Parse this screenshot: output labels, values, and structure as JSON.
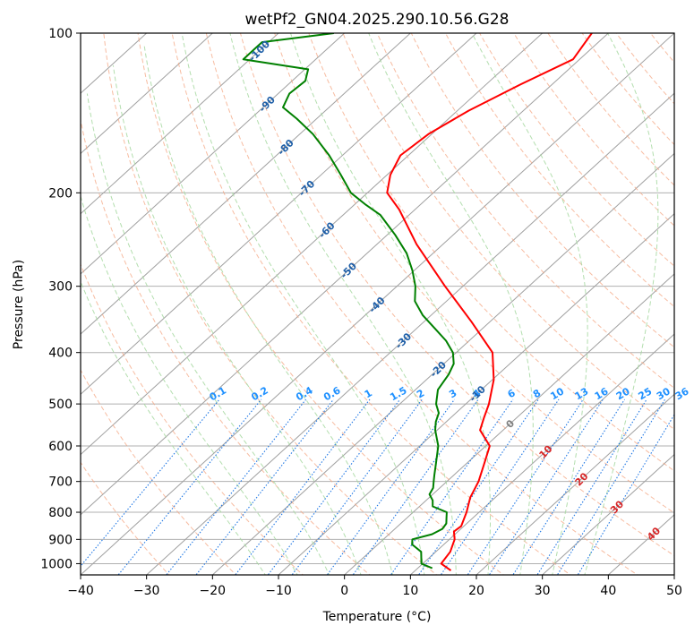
{
  "chart_data": {
    "type": "line",
    "subtype": "skew-t log-p diagram",
    "title": "wetPf2_GN04.2025.290.10.56.G28",
    "xlabel": "Temperature (°C)",
    "ylabel": "Pressure (hPa)",
    "xlim": [
      -40,
      50
    ],
    "ylim": [
      1050,
      100
    ],
    "x_ticks": [
      -40,
      -30,
      -20,
      -10,
      0,
      10,
      20,
      30,
      40,
      50
    ],
    "x_tick_labels": [
      "−40",
      "−30",
      "−20",
      "−10",
      "0",
      "10",
      "20",
      "30",
      "40",
      "50"
    ],
    "y_ticks": [
      1000,
      900,
      800,
      700,
      600,
      500,
      400,
      300,
      200,
      100
    ],
    "y_tick_labels": [
      "1000",
      "900",
      "800",
      "700",
      "600",
      "500",
      "400",
      "300",
      "200",
      "100"
    ],
    "series": [
      {
        "name": "Temperature",
        "color": "#ff0000",
        "pressure": [
          1030,
          1000,
          950,
          900,
          870,
          850,
          800,
          750,
          700,
          650,
          600,
          560,
          530,
          500,
          450,
          400,
          350,
          300,
          250,
          215,
          200,
          185,
          170,
          155,
          140,
          125,
          112,
          100
        ],
        "temperature": [
          15.4,
          12.8,
          12.2,
          10.8,
          9.4,
          9.6,
          8.1,
          6.2,
          4.8,
          2.8,
          0.6,
          -3.5,
          -5.0,
          -6.5,
          -9.8,
          -14.5,
          -22.8,
          -32.7,
          -44.0,
          -52.4,
          -57.0,
          -59.5,
          -61.2,
          -60.5,
          -58.3,
          -54.8,
          -51.0,
          -52.5
        ]
      },
      {
        "name": "Dewpoint",
        "color": "#008000",
        "pressure": [
          1020,
          1000,
          950,
          920,
          900,
          880,
          860,
          840,
          820,
          800,
          780,
          760,
          740,
          720,
          700,
          680,
          650,
          600,
          560,
          540,
          520,
          500,
          470,
          440,
          420,
          400,
          380,
          360,
          340,
          320,
          300,
          280,
          260,
          240,
          220,
          210,
          200,
          185,
          170,
          155,
          145,
          138,
          130,
          123,
          117,
          112,
          107,
          104,
          100
        ],
        "temperature": [
          12.2,
          9.8,
          7.8,
          5.2,
          4.4,
          6.5,
          7.2,
          6.9,
          6.0,
          5.1,
          2.0,
          1.0,
          -0.5,
          -1.0,
          -2.0,
          -3.0,
          -4.5,
          -7.2,
          -10.3,
          -11.6,
          -12.6,
          -14.5,
          -16.6,
          -17.5,
          -18.5,
          -20.5,
          -23.5,
          -27.3,
          -31.3,
          -34.8,
          -37.2,
          -40.3,
          -44.0,
          -48.8,
          -54.4,
          -58.5,
          -62.5,
          -67.0,
          -72.0,
          -78.0,
          -83.0,
          -87.0,
          -88.3,
          -88.0,
          -89.5,
          -101.0,
          -101.0,
          -101.0,
          -91.6
        ]
      }
    ],
    "reference_lines": {
      "isotherms_degC": [
        -140,
        -130,
        -120,
        -110,
        -100,
        -90,
        -80,
        -70,
        -60,
        -50,
        -40,
        -30,
        -20,
        -10,
        0,
        10,
        20,
        30,
        40,
        50
      ],
      "dry_adiabats_degC": [
        -30,
        -20,
        -10,
        0,
        10,
        20,
        30,
        40,
        50,
        60,
        70,
        80,
        90,
        100,
        110,
        120,
        130,
        140,
        150,
        160,
        170,
        180,
        190
      ],
      "moist_adiabats_degC": [
        -15,
        -10,
        -5,
        0,
        5,
        10,
        15,
        20,
        25,
        30,
        35
      ],
      "mixing_ratios_gkg": [
        0.1,
        0.2,
        0.4,
        0.6,
        1,
        1.5,
        2,
        3,
        4,
        6,
        8,
        10,
        13,
        16,
        20,
        25,
        30,
        36
      ]
    },
    "annotations": {
      "mixing_ratio_labels": [
        "0.1",
        "0.2",
        "0.4",
        "0.6",
        "1",
        "1.5",
        "2",
        "3",
        "4",
        "6",
        "8",
        "10",
        "13",
        "16",
        "20",
        "25",
        "30",
        "36"
      ],
      "isotherm_labels_upper": [
        {
          "t": -100,
          "p": 108,
          "text": "-100"
        },
        {
          "t": -90,
          "p": 136,
          "text": "-90"
        },
        {
          "t": -80,
          "p": 164,
          "text": "-80"
        },
        {
          "t": -70,
          "p": 196,
          "text": "-70"
        },
        {
          "t": -60,
          "p": 235,
          "text": "-60"
        },
        {
          "t": -50,
          "p": 280,
          "text": "-50"
        },
        {
          "t": -40,
          "p": 325,
          "text": "-40"
        },
        {
          "t": -30,
          "p": 380,
          "text": "-30"
        },
        {
          "t": -20,
          "p": 430,
          "text": "-20"
        },
        {
          "t": -10,
          "p": 478,
          "text": "-10"
        }
      ],
      "isotherm_labels_lower": [
        {
          "t": 0,
          "p": 545,
          "text": "0",
          "color": "#808080"
        },
        {
          "t": 10,
          "p": 615,
          "text": "10",
          "color": "#d62728"
        },
        {
          "t": 20,
          "p": 693,
          "text": "20",
          "color": "#d62728"
        },
        {
          "t": 30,
          "p": 782,
          "text": "30",
          "color": "#d62728"
        },
        {
          "t": 40,
          "p": 878,
          "text": "40",
          "color": "#d62728"
        }
      ]
    }
  }
}
